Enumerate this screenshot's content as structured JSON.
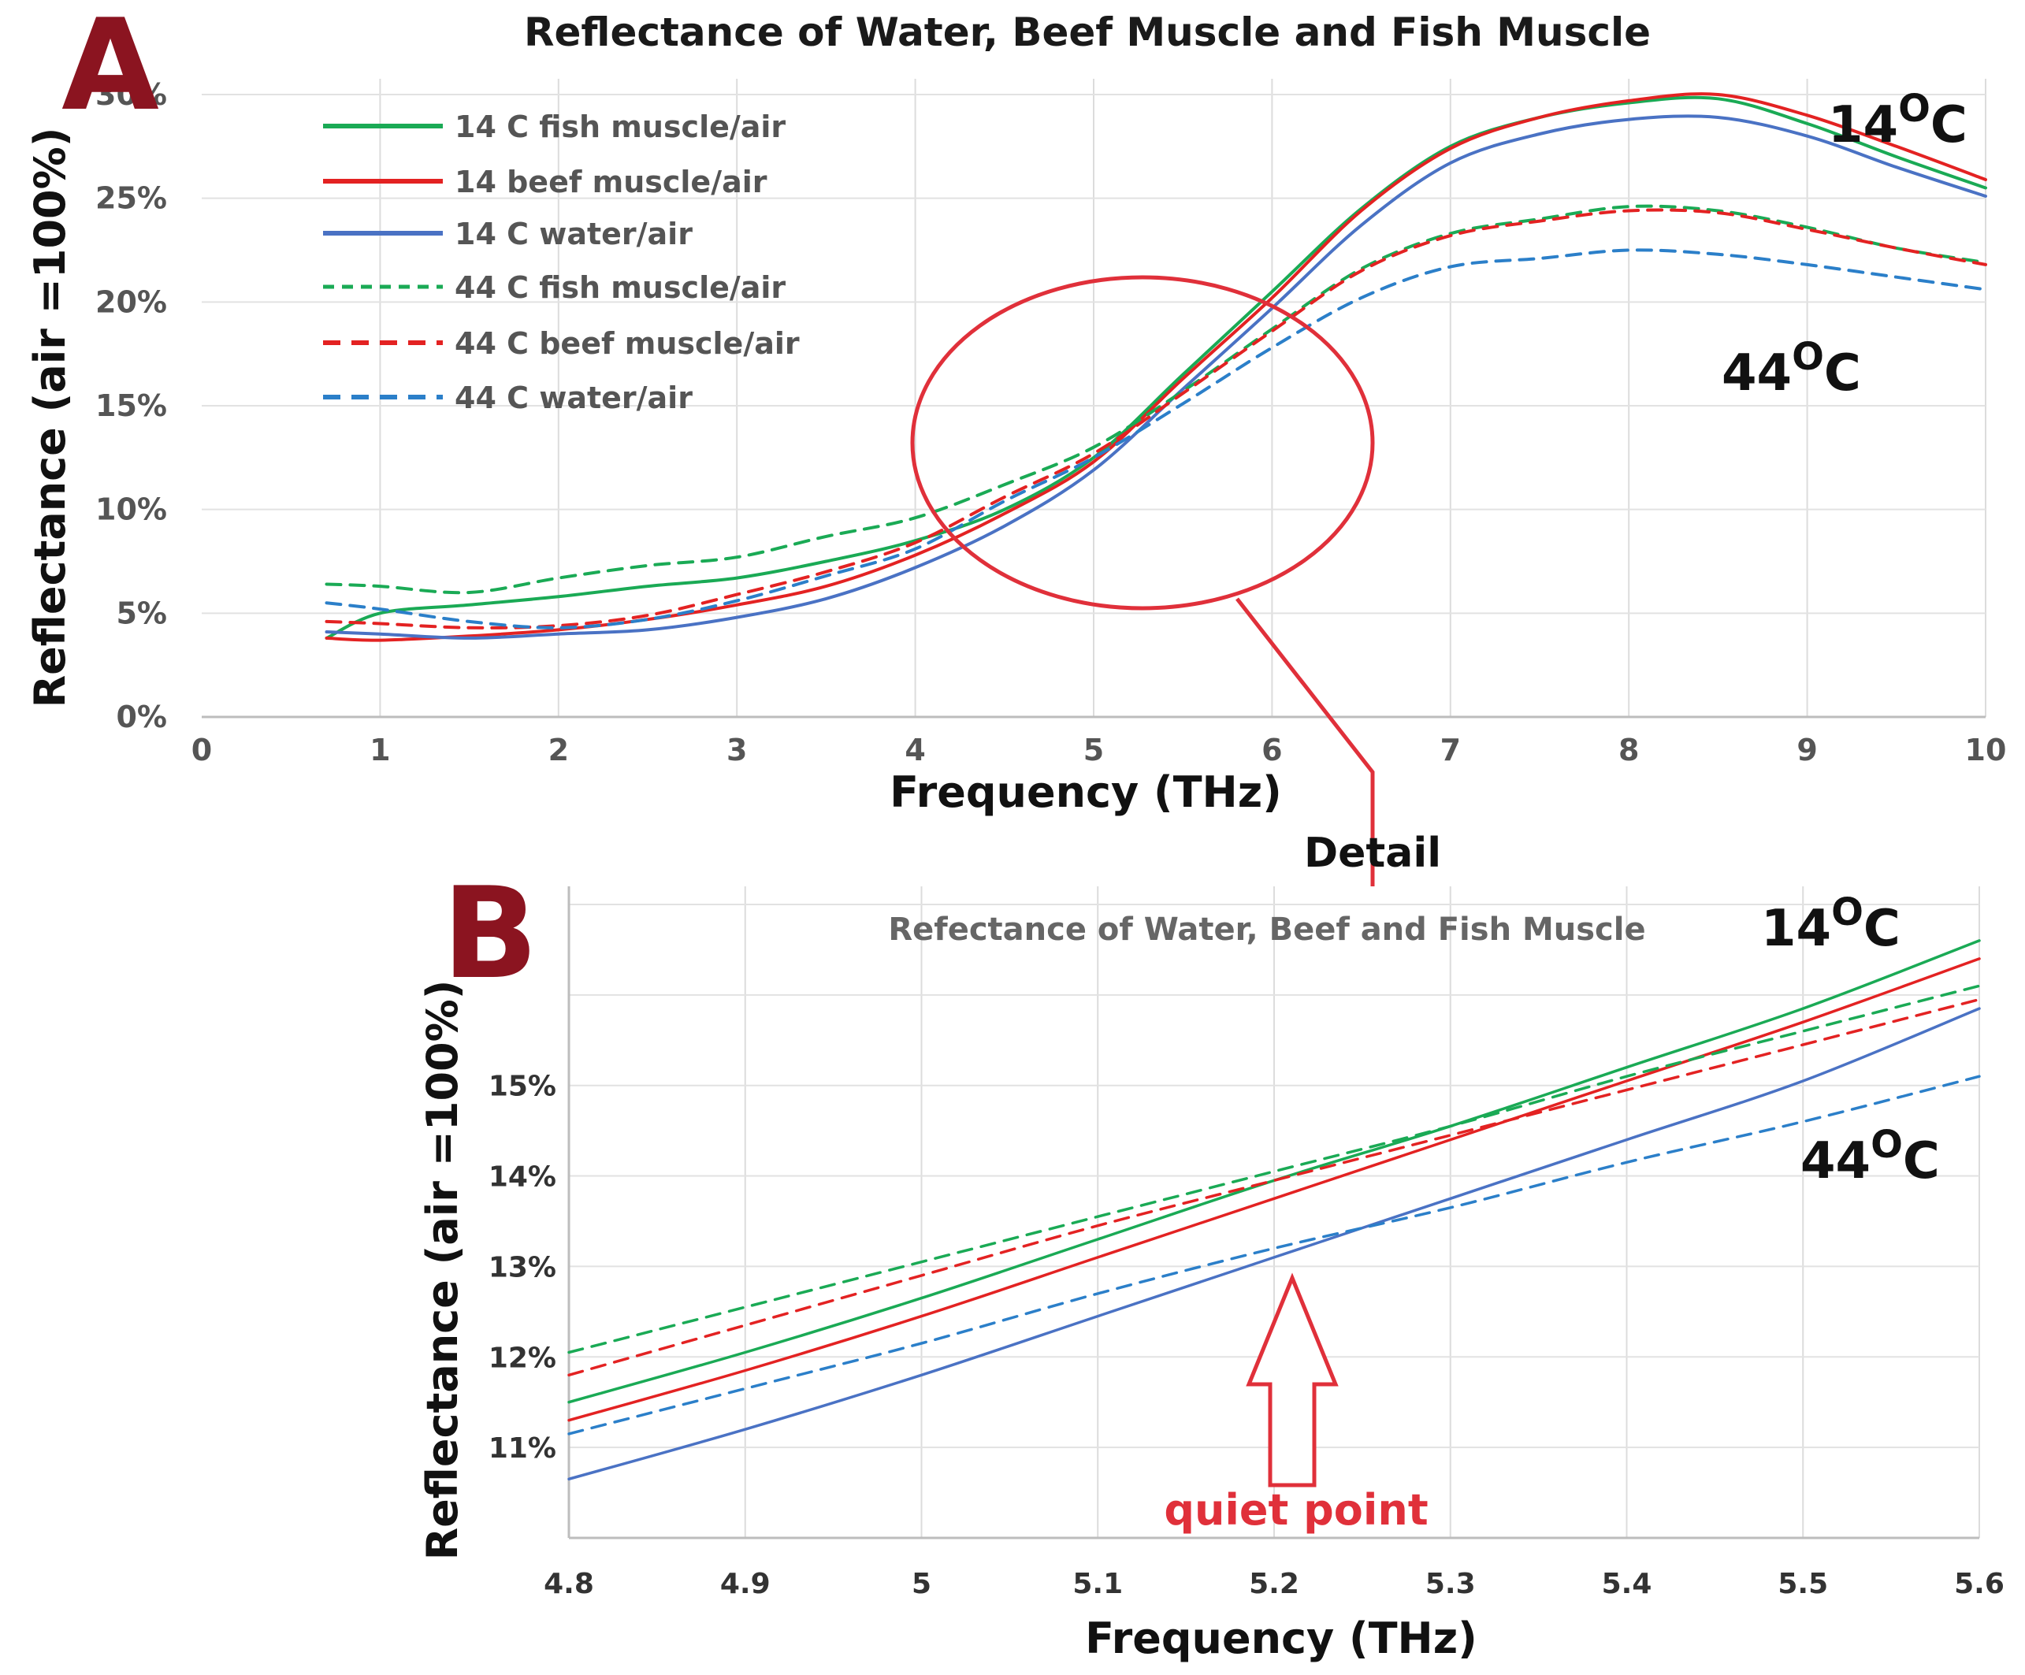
{
  "panel_letters": {
    "a": "A",
    "b": "B"
  },
  "callouts": {
    "a_14": "14",
    "a_44": "44",
    "b_14": "14",
    "b_44": "44",
    "degree_o": "O",
    "celsius": "C",
    "detail": "Detail",
    "quiet_point": "quiet point"
  },
  "colors": {
    "fish": "#1aaa55",
    "beef": "#e32222",
    "water14": "#4a72c4",
    "water44": "#2b7fc9",
    "accent": "#8b1420"
  },
  "chart_data": [
    {
      "id": "A",
      "type": "line",
      "title": "Reflectance of Water, Beef Muscle and Fish Muscle",
      "xlabel": "Frequency (THz)",
      "ylabel": "Reflectance (air =100%)",
      "xlim": [
        0,
        10
      ],
      "ylim": [
        0,
        30
      ],
      "xticks": [
        "0",
        "1",
        "2",
        "3",
        "4",
        "5",
        "6",
        "7",
        "8",
        "9",
        "10"
      ],
      "yticks": [
        "0%",
        "5%",
        "10%",
        "15%",
        "20%",
        "25%",
        "30%"
      ],
      "grid": true,
      "legend_position": "top-left",
      "x": [
        0.7,
        1.0,
        1.5,
        2.0,
        2.5,
        3.0,
        3.5,
        4.0,
        4.5,
        5.0,
        5.5,
        6.0,
        6.5,
        7.0,
        7.5,
        8.0,
        8.5,
        9.0,
        9.5,
        10.0
      ],
      "series": [
        {
          "name": "14 C fish muscle/air",
          "color": "#1aaa55",
          "dash": false,
          "values": [
            3.8,
            5.0,
            5.4,
            5.8,
            6.3,
            6.7,
            7.5,
            8.5,
            10.0,
            12.5,
            16.5,
            20.5,
            24.5,
            27.5,
            28.9,
            29.6,
            29.8,
            28.6,
            27.0,
            25.5
          ]
        },
        {
          "name": "14 beef muscle/air",
          "color": "#e32222",
          "dash": false,
          "values": [
            3.8,
            3.7,
            3.9,
            4.2,
            4.7,
            5.4,
            6.3,
            7.8,
            9.8,
            12.3,
            16.3,
            20.2,
            24.4,
            27.4,
            28.9,
            29.7,
            30.0,
            29.0,
            27.5,
            25.9
          ]
        },
        {
          "name": "14 C water/air",
          "color": "#4a72c4",
          "dash": false,
          "values": [
            4.1,
            4.0,
            3.8,
            4.0,
            4.2,
            4.8,
            5.7,
            7.2,
            9.2,
            11.9,
            15.8,
            19.7,
            23.7,
            26.7,
            28.1,
            28.8,
            28.9,
            28.0,
            26.5,
            25.1
          ]
        },
        {
          "name": "44 C fish muscle/air",
          "color": "#1aaa55",
          "dash": true,
          "values": [
            6.4,
            6.3,
            6.0,
            6.7,
            7.3,
            7.7,
            8.7,
            9.6,
            11.2,
            13.0,
            15.7,
            18.7,
            21.6,
            23.3,
            24.0,
            24.6,
            24.4,
            23.6,
            22.6,
            21.9
          ]
        },
        {
          "name": "44 C beef muscle/air",
          "color": "#e32222",
          "dash": true,
          "values": [
            4.6,
            4.5,
            4.3,
            4.4,
            4.9,
            5.9,
            7.0,
            8.4,
            10.6,
            12.7,
            15.6,
            18.6,
            21.5,
            23.2,
            23.9,
            24.4,
            24.3,
            23.5,
            22.6,
            21.8
          ]
        },
        {
          "name": "44 C water/air",
          "color": "#2b7fc9",
          "dash": true,
          "values": [
            5.5,
            5.2,
            4.6,
            4.3,
            4.7,
            5.6,
            6.8,
            8.1,
            10.4,
            12.5,
            15.1,
            17.8,
            20.2,
            21.7,
            22.1,
            22.5,
            22.3,
            21.8,
            21.2,
            20.6
          ]
        }
      ]
    },
    {
      "id": "B",
      "type": "line",
      "title": "Refectance of Water, Beef and Fish Muscle",
      "xlabel": "Frequency (THz)",
      "ylabel": "Reflectance (air =100%)",
      "xlim": [
        4.8,
        5.6
      ],
      "ylim": [
        10,
        17.2
      ],
      "xticks": [
        "4.8",
        "4.9",
        "5",
        "5.1",
        "5.2",
        "5.3",
        "5.4",
        "5.5",
        "5.6"
      ],
      "yticks": [
        "11%",
        "12%",
        "13%",
        "14%",
        "15%"
      ],
      "grid": true,
      "x": [
        4.8,
        4.9,
        5.0,
        5.1,
        5.2,
        5.3,
        5.4,
        5.5,
        5.6
      ],
      "series": [
        {
          "name": "14 C fish muscle/air",
          "color": "#1aaa55",
          "dash": false,
          "values": [
            11.5,
            12.05,
            12.65,
            13.3,
            13.95,
            14.55,
            15.2,
            15.85,
            16.6
          ]
        },
        {
          "name": "14 beef muscle/air",
          "color": "#e32222",
          "dash": false,
          "values": [
            11.3,
            11.85,
            12.45,
            13.1,
            13.75,
            14.4,
            15.05,
            15.7,
            16.4
          ]
        },
        {
          "name": "14 C water/air",
          "color": "#4a72c4",
          "dash": false,
          "values": [
            10.65,
            11.2,
            11.8,
            12.45,
            13.1,
            13.75,
            14.4,
            15.05,
            15.85
          ]
        },
        {
          "name": "44 C fish muscle/air",
          "color": "#1aaa55",
          "dash": true,
          "values": [
            12.05,
            12.55,
            13.05,
            13.55,
            14.05,
            14.55,
            15.1,
            15.6,
            16.1
          ]
        },
        {
          "name": "44 C beef muscle/air",
          "color": "#e32222",
          "dash": true,
          "values": [
            11.8,
            12.35,
            12.9,
            13.45,
            13.95,
            14.45,
            14.95,
            15.45,
            15.95
          ]
        },
        {
          "name": "44 C water/air",
          "color": "#2b7fc9",
          "dash": true,
          "values": [
            11.15,
            11.65,
            12.15,
            12.7,
            13.2,
            13.65,
            14.15,
            14.6,
            15.1
          ]
        }
      ]
    }
  ]
}
